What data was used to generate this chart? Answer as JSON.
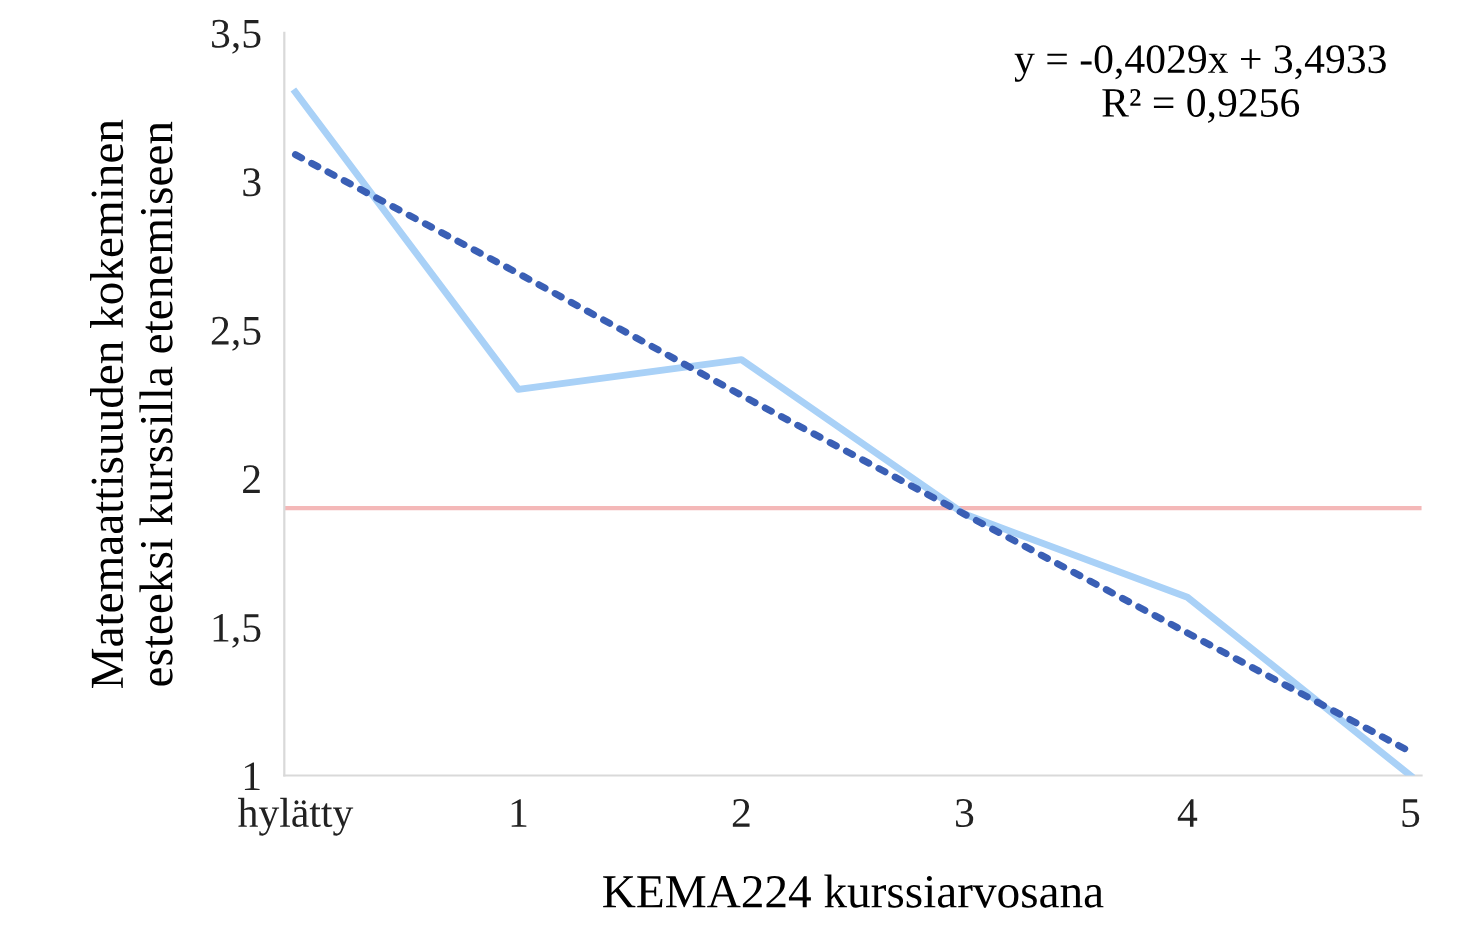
{
  "chart_data": {
    "type": "line",
    "xlabel": "KEMA224 kurssiarvosana",
    "ylabel": "Matemaattisuuden kokeminen\nesteeksi kurssilla etenemiseen",
    "categories": [
      "hylätty",
      "1",
      "2",
      "3",
      "4",
      "5"
    ],
    "series": [
      {
        "color": "#a9d1f7",
        "values": [
          3.3,
          2.3,
          2.4,
          1.88,
          1.6,
          1.0
        ],
        "line_style": "solid"
      },
      {
        "color": "#3a5fb5",
        "values": [
          3.09,
          2.69,
          2.28,
          1.88,
          1.48,
          1.08
        ],
        "line_style": "dotted"
      }
    ],
    "ylim": [
      1,
      3.5
    ],
    "yticks": [
      {
        "value": 1,
        "label": "1"
      },
      {
        "value": 1.5,
        "label": "1,5"
      },
      {
        "value": 2,
        "label": "2"
      },
      {
        "value": 2.5,
        "label": "2,5"
      },
      {
        "value": 3,
        "label": "3"
      },
      {
        "value": 3.5,
        "label": "3,5"
      }
    ],
    "ref_lines": [
      {
        "axis": "y",
        "value": 1.9,
        "color": "#f4b8b8",
        "line_style": "solid"
      }
    ],
    "annotations": [
      "y = -0,4029x + 3,4933\nR² = 0,9256"
    ],
    "grid": false,
    "legend": false,
    "marker": "none"
  }
}
